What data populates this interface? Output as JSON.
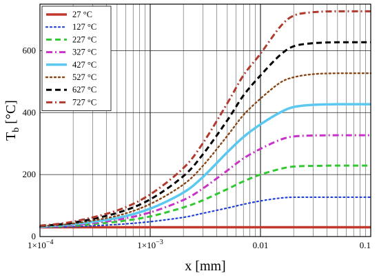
{
  "chart_data": {
    "type": "line",
    "xscale": "log",
    "xlim": [
      0.0001,
      0.1
    ],
    "ylim": [
      0,
      750
    ],
    "xlabel": "x [mm]",
    "ylabel": "T_b [°C]",
    "ylabel_main": "T",
    "ylabel_sub": "b",
    "ylabel_unit": " [°C]",
    "grid": true,
    "legend_position": "top-left",
    "xticks": [
      {
        "value": 0.0001,
        "mant": "1×10",
        "exp": "−4"
      },
      {
        "value": 0.001,
        "mant": "1×10",
        "exp": "−3"
      },
      {
        "value": 0.01,
        "label": "0.01"
      },
      {
        "value": 0.1,
        "label": "0.1"
      }
    ],
    "yticks": [
      {
        "value": 0,
        "label": "0"
      },
      {
        "value": 200,
        "label": "200"
      },
      {
        "value": 400,
        "label": "400"
      },
      {
        "value": 600,
        "label": "600"
      }
    ],
    "x": [
      0.0001,
      0.0002,
      0.0005,
      0.001,
      0.002,
      0.003,
      0.005,
      0.007,
      0.01,
      0.015,
      0.02,
      0.03,
      0.05,
      0.1
    ],
    "series": [
      {
        "name": "27 °C",
        "color": "#c0392b",
        "dash": "solid",
        "width": 3.5,
        "values": [
          30,
          30,
          30,
          30,
          30,
          30,
          30,
          30,
          30,
          30,
          30,
          30,
          30,
          30
        ]
      },
      {
        "name": "127 °C",
        "color": "#1f3fd8",
        "dash": "dot",
        "width": 2.2,
        "values": [
          30,
          32,
          39,
          48,
          62,
          75,
          92,
          104,
          115,
          124,
          127,
          127,
          127,
          127
        ]
      },
      {
        "name": "227 °C",
        "color": "#32c832",
        "dash": "dash",
        "width": 3.0,
        "values": [
          31,
          35,
          48,
          65,
          94,
          117,
          153,
          178,
          200,
          218,
          226,
          228,
          229,
          229
        ]
      },
      {
        "name": "327 °C",
        "color": "#c832c8",
        "dash": "dashdot",
        "width": 3.0,
        "values": [
          31,
          37,
          54,
          78,
          118,
          155,
          213,
          252,
          283,
          312,
          323,
          326,
          327,
          327
        ]
      },
      {
        "name": "427 °C",
        "color": "#5ac8f0",
        "dash": "solid",
        "width": 3.5,
        "values": [
          32,
          40,
          60,
          90,
          142,
          192,
          272,
          321,
          362,
          400,
          418,
          425,
          427,
          427
        ]
      },
      {
        "name": "527 °C",
        "color": "#8b4513",
        "dash": "dot",
        "width": 2.4,
        "values": [
          33,
          42,
          67,
          105,
          168,
          228,
          325,
          392,
          445,
          496,
          514,
          524,
          527,
          527
        ]
      },
      {
        "name": "627 °C",
        "color": "#000000",
        "dash": "dash",
        "width": 3.0,
        "values": [
          34,
          45,
          76,
          120,
          195,
          265,
          375,
          455,
          520,
          585,
          614,
          624,
          627,
          627
        ]
      },
      {
        "name": "727 °C",
        "color": "#b03a2e",
        "dash": "dashdot",
        "width": 3.0,
        "values": [
          35,
          48,
          84,
          136,
          221,
          301,
          430,
          520,
          590,
          676,
          713,
          724,
          727,
          727
        ]
      }
    ]
  }
}
